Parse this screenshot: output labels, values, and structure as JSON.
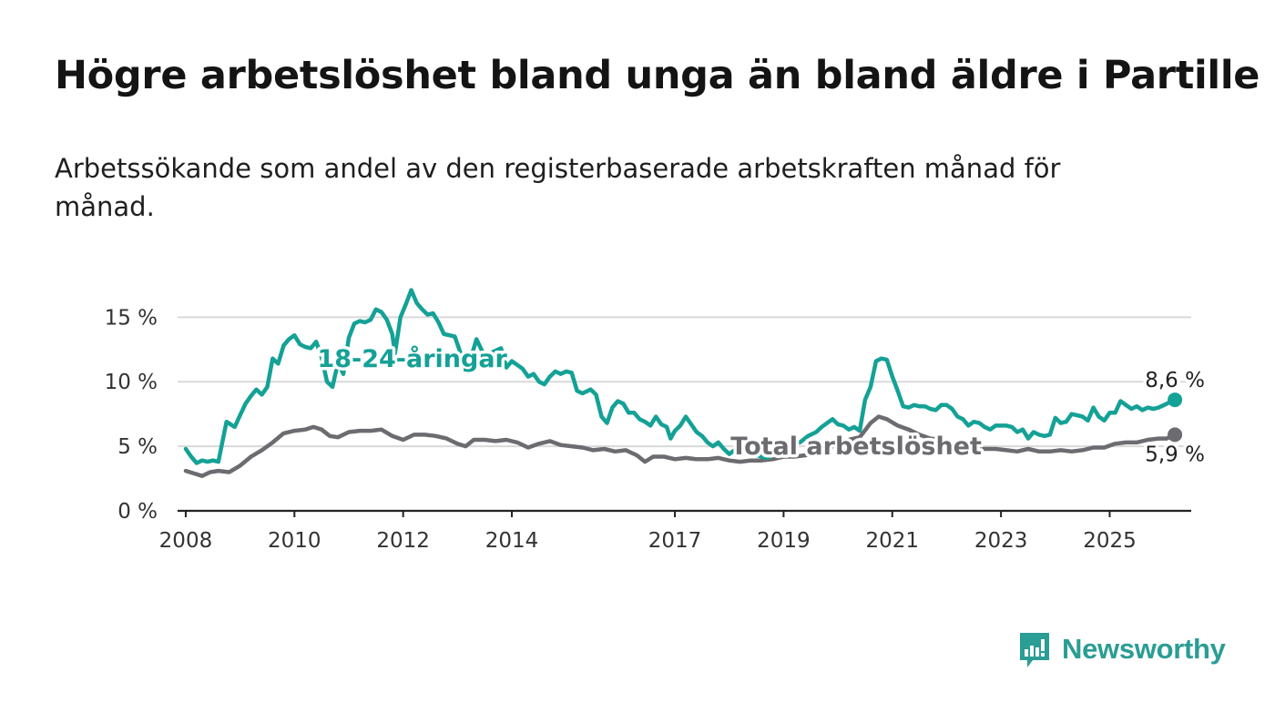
{
  "header": {
    "title": "Högre arbetslöshet bland unga än bland äldre i Partille",
    "subtitle": "Arbetssökande som andel av den registerbaserade arbetskraften månad för månad."
  },
  "brand": {
    "name": "Newsworthy",
    "color": "#2a9d94"
  },
  "colors": {
    "youth": "#14a196",
    "total": "#6c6b70",
    "grid": "#d9d9d9",
    "axis": "#222222"
  },
  "chart_data": {
    "type": "line",
    "title": "Högre arbetslöshet bland unga än bland äldre i Partille",
    "xlabel": "",
    "ylabel": "",
    "xlim": [
      2007.85,
      2026.5
    ],
    "ylim": [
      0,
      17
    ],
    "y_ticks": [
      0,
      5,
      10,
      15
    ],
    "y_tick_labels": [
      "0 %",
      "5 %",
      "10 %",
      "15 %"
    ],
    "x_ticks": [
      2008,
      2010,
      2012,
      2014,
      2017,
      2019,
      2021,
      2023,
      2025
    ],
    "x_tick_labels": [
      "2008",
      "2010",
      "2012",
      "2014",
      "2017",
      "2019",
      "2021",
      "2023",
      "2025"
    ],
    "grid": true,
    "series": [
      {
        "name": "18-24-åringar",
        "color": "#14a196",
        "label_at": 2012.0,
        "end_label": "8,6 %",
        "points": [
          [
            2008.0,
            4.8
          ],
          [
            2008.1,
            4.2
          ],
          [
            2008.2,
            3.7
          ],
          [
            2008.3,
            3.9
          ],
          [
            2008.4,
            3.8
          ],
          [
            2008.5,
            3.9
          ],
          [
            2008.6,
            3.8
          ],
          [
            2008.75,
            6.9
          ],
          [
            2008.9,
            6.5
          ],
          [
            2009.0,
            7.4
          ],
          [
            2009.1,
            8.3
          ],
          [
            2009.2,
            8.9
          ],
          [
            2009.3,
            9.4
          ],
          [
            2009.4,
            9.0
          ],
          [
            2009.5,
            9.6
          ],
          [
            2009.6,
            11.8
          ],
          [
            2009.7,
            11.4
          ],
          [
            2009.8,
            12.8
          ],
          [
            2009.9,
            13.3
          ],
          [
            2010.0,
            13.6
          ],
          [
            2010.1,
            12.9
          ],
          [
            2010.2,
            12.7
          ],
          [
            2010.3,
            12.6
          ],
          [
            2010.4,
            13.1
          ],
          [
            2010.5,
            11.9
          ],
          [
            2010.6,
            10.0
          ],
          [
            2010.7,
            9.6
          ],
          [
            2010.8,
            11.5
          ],
          [
            2010.9,
            10.6
          ],
          [
            2011.0,
            13.4
          ],
          [
            2011.1,
            14.5
          ],
          [
            2011.2,
            14.7
          ],
          [
            2011.3,
            14.6
          ],
          [
            2011.4,
            14.8
          ],
          [
            2011.5,
            15.6
          ],
          [
            2011.6,
            15.4
          ],
          [
            2011.7,
            14.8
          ],
          [
            2011.8,
            13.7
          ],
          [
            2011.85,
            12.2
          ],
          [
            2011.95,
            15.0
          ],
          [
            2012.05,
            16.0
          ],
          [
            2012.15,
            17.1
          ],
          [
            2012.25,
            16.1
          ],
          [
            2012.35,
            15.6
          ],
          [
            2012.45,
            15.2
          ],
          [
            2012.55,
            15.3
          ],
          [
            2012.65,
            14.6
          ],
          [
            2012.75,
            13.7
          ],
          [
            2012.85,
            13.6
          ],
          [
            2012.95,
            13.5
          ],
          [
            2013.05,
            12.3
          ],
          [
            2013.15,
            10.9
          ],
          [
            2013.25,
            11.9
          ],
          [
            2013.35,
            13.3
          ],
          [
            2013.45,
            12.4
          ],
          [
            2013.55,
            11.9
          ],
          [
            2013.65,
            12.3
          ],
          [
            2013.8,
            12.6
          ],
          [
            2013.9,
            11.1
          ],
          [
            2014.0,
            11.6
          ],
          [
            2014.2,
            11.0
          ],
          [
            2014.3,
            10.4
          ],
          [
            2014.4,
            10.6
          ],
          [
            2014.5,
            10.0
          ],
          [
            2014.6,
            9.8
          ],
          [
            2014.7,
            10.4
          ],
          [
            2014.8,
            10.8
          ],
          [
            2014.9,
            10.6
          ],
          [
            2015.0,
            10.8
          ],
          [
            2015.1,
            10.7
          ],
          [
            2015.2,
            9.3
          ],
          [
            2015.3,
            9.1
          ],
          [
            2015.45,
            9.4
          ],
          [
            2015.55,
            9.0
          ],
          [
            2015.65,
            7.3
          ],
          [
            2015.75,
            6.8
          ],
          [
            2015.85,
            8.0
          ],
          [
            2015.95,
            8.5
          ],
          [
            2016.05,
            8.3
          ],
          [
            2016.15,
            7.6
          ],
          [
            2016.25,
            7.6
          ],
          [
            2016.35,
            7.1
          ],
          [
            2016.45,
            6.9
          ],
          [
            2016.55,
            6.6
          ],
          [
            2016.65,
            7.3
          ],
          [
            2016.75,
            6.7
          ],
          [
            2016.85,
            6.5
          ],
          [
            2016.92,
            5.6
          ],
          [
            2017.0,
            6.2
          ],
          [
            2017.1,
            6.6
          ],
          [
            2017.2,
            7.3
          ],
          [
            2017.3,
            6.7
          ],
          [
            2017.4,
            6.1
          ],
          [
            2017.5,
            5.8
          ],
          [
            2017.6,
            5.3
          ],
          [
            2017.7,
            5.0
          ],
          [
            2017.8,
            5.3
          ],
          [
            2017.9,
            4.8
          ],
          [
            2018.0,
            4.4
          ],
          [
            2018.1,
            4.7
          ],
          [
            2018.2,
            4.8
          ],
          [
            2018.3,
            5.2
          ],
          [
            2018.4,
            4.8
          ],
          [
            2018.5,
            4.3
          ],
          [
            2018.6,
            4.2
          ],
          [
            2018.7,
            4.1
          ],
          [
            2018.8,
            4.3
          ],
          [
            2018.9,
            4.8
          ],
          [
            2019.0,
            5.0
          ],
          [
            2019.1,
            5.2
          ],
          [
            2019.3,
            5.3
          ],
          [
            2019.45,
            5.8
          ],
          [
            2019.6,
            6.1
          ],
          [
            2019.7,
            6.5
          ],
          [
            2019.8,
            6.8
          ],
          [
            2019.9,
            7.1
          ],
          [
            2020.0,
            6.7
          ],
          [
            2020.1,
            6.6
          ],
          [
            2020.2,
            6.3
          ],
          [
            2020.3,
            6.5
          ],
          [
            2020.4,
            6.2
          ],
          [
            2020.5,
            8.6
          ],
          [
            2020.6,
            9.6
          ],
          [
            2020.7,
            11.6
          ],
          [
            2020.8,
            11.8
          ],
          [
            2020.9,
            11.7
          ],
          [
            2021.0,
            10.4
          ],
          [
            2021.1,
            9.3
          ],
          [
            2021.2,
            8.1
          ],
          [
            2021.3,
            8.0
          ],
          [
            2021.4,
            8.2
          ],
          [
            2021.5,
            8.1
          ],
          [
            2021.6,
            8.1
          ],
          [
            2021.7,
            7.9
          ],
          [
            2021.8,
            7.8
          ],
          [
            2021.9,
            8.2
          ],
          [
            2022.0,
            8.2
          ],
          [
            2022.1,
            7.9
          ],
          [
            2022.2,
            7.3
          ],
          [
            2022.3,
            7.1
          ],
          [
            2022.4,
            6.6
          ],
          [
            2022.5,
            6.9
          ],
          [
            2022.6,
            6.8
          ],
          [
            2022.7,
            6.5
          ],
          [
            2022.8,
            6.3
          ],
          [
            2022.9,
            6.6
          ],
          [
            2023.0,
            6.6
          ],
          [
            2023.1,
            6.6
          ],
          [
            2023.2,
            6.5
          ],
          [
            2023.3,
            6.1
          ],
          [
            2023.4,
            6.3
          ],
          [
            2023.5,
            5.6
          ],
          [
            2023.6,
            6.1
          ],
          [
            2023.7,
            5.9
          ],
          [
            2023.8,
            5.8
          ],
          [
            2023.9,
            5.9
          ],
          [
            2024.0,
            7.2
          ],
          [
            2024.1,
            6.8
          ],
          [
            2024.2,
            6.9
          ],
          [
            2024.3,
            7.5
          ],
          [
            2024.4,
            7.4
          ],
          [
            2024.5,
            7.3
          ],
          [
            2024.6,
            7.0
          ],
          [
            2024.7,
            8.0
          ],
          [
            2024.8,
            7.3
          ],
          [
            2024.9,
            7.0
          ],
          [
            2025.0,
            7.6
          ],
          [
            2025.1,
            7.6
          ],
          [
            2025.2,
            8.5
          ],
          [
            2025.3,
            8.2
          ],
          [
            2025.4,
            7.9
          ],
          [
            2025.5,
            8.1
          ],
          [
            2025.6,
            7.8
          ],
          [
            2025.7,
            8.0
          ],
          [
            2025.8,
            7.9
          ],
          [
            2025.9,
            8.0
          ],
          [
            2026.0,
            8.2
          ],
          [
            2026.1,
            8.4
          ],
          [
            2026.2,
            8.6
          ]
        ]
      },
      {
        "name": "Total arbetslöshet",
        "color": "#6c6b70",
        "label_at": 2020.0,
        "end_label": "5,9 %",
        "points": [
          [
            2008.0,
            3.1
          ],
          [
            2008.15,
            2.9
          ],
          [
            2008.3,
            2.7
          ],
          [
            2008.45,
            3.0
          ],
          [
            2008.6,
            3.1
          ],
          [
            2008.8,
            3.0
          ],
          [
            2009.0,
            3.5
          ],
          [
            2009.2,
            4.2
          ],
          [
            2009.4,
            4.7
          ],
          [
            2009.6,
            5.3
          ],
          [
            2009.8,
            6.0
          ],
          [
            2010.0,
            6.2
          ],
          [
            2010.2,
            6.3
          ],
          [
            2010.35,
            6.5
          ],
          [
            2010.5,
            6.3
          ],
          [
            2010.65,
            5.8
          ],
          [
            2010.8,
            5.7
          ],
          [
            2011.0,
            6.1
          ],
          [
            2011.2,
            6.2
          ],
          [
            2011.4,
            6.2
          ],
          [
            2011.6,
            6.3
          ],
          [
            2011.8,
            5.8
          ],
          [
            2012.0,
            5.5
          ],
          [
            2012.2,
            5.9
          ],
          [
            2012.4,
            5.9
          ],
          [
            2012.6,
            5.8
          ],
          [
            2012.8,
            5.6
          ],
          [
            2013.0,
            5.2
          ],
          [
            2013.15,
            5.0
          ],
          [
            2013.3,
            5.5
          ],
          [
            2013.5,
            5.5
          ],
          [
            2013.7,
            5.4
          ],
          [
            2013.9,
            5.5
          ],
          [
            2014.1,
            5.3
          ],
          [
            2014.3,
            4.9
          ],
          [
            2014.5,
            5.2
          ],
          [
            2014.7,
            5.4
          ],
          [
            2014.9,
            5.1
          ],
          [
            2015.1,
            5.0
          ],
          [
            2015.3,
            4.9
          ],
          [
            2015.5,
            4.7
          ],
          [
            2015.7,
            4.8
          ],
          [
            2015.9,
            4.6
          ],
          [
            2016.1,
            4.7
          ],
          [
            2016.3,
            4.3
          ],
          [
            2016.45,
            3.8
          ],
          [
            2016.6,
            4.2
          ],
          [
            2016.8,
            4.2
          ],
          [
            2017.0,
            4.0
          ],
          [
            2017.2,
            4.1
          ],
          [
            2017.4,
            4.0
          ],
          [
            2017.6,
            4.0
          ],
          [
            2017.8,
            4.1
          ],
          [
            2018.0,
            3.9
          ],
          [
            2018.2,
            3.8
          ],
          [
            2018.4,
            3.9
          ],
          [
            2018.6,
            3.9
          ],
          [
            2018.8,
            4.0
          ],
          [
            2019.0,
            4.2
          ],
          [
            2019.2,
            4.2
          ],
          [
            2019.4,
            4.3
          ],
          [
            2019.6,
            4.5
          ],
          [
            2019.8,
            4.8
          ],
          [
            2020.0,
            5.2
          ],
          [
            2020.2,
            5.5
          ],
          [
            2020.4,
            5.7
          ],
          [
            2020.6,
            6.8
          ],
          [
            2020.75,
            7.3
          ],
          [
            2020.9,
            7.1
          ],
          [
            2021.1,
            6.6
          ],
          [
            2021.3,
            6.3
          ],
          [
            2021.5,
            5.9
          ],
          [
            2021.7,
            5.6
          ],
          [
            2021.9,
            5.5
          ],
          [
            2022.1,
            5.2
          ],
          [
            2022.3,
            5.0
          ],
          [
            2022.5,
            4.9
          ],
          [
            2022.7,
            4.8
          ],
          [
            2022.9,
            4.8
          ],
          [
            2023.1,
            4.7
          ],
          [
            2023.3,
            4.6
          ],
          [
            2023.5,
            4.8
          ],
          [
            2023.7,
            4.6
          ],
          [
            2023.9,
            4.6
          ],
          [
            2024.1,
            4.7
          ],
          [
            2024.3,
            4.6
          ],
          [
            2024.5,
            4.7
          ],
          [
            2024.7,
            4.9
          ],
          [
            2024.9,
            4.9
          ],
          [
            2025.1,
            5.2
          ],
          [
            2025.3,
            5.3
          ],
          [
            2025.5,
            5.3
          ],
          [
            2025.7,
            5.5
          ],
          [
            2025.9,
            5.6
          ],
          [
            2026.05,
            5.6
          ],
          [
            2026.2,
            5.9
          ]
        ]
      }
    ]
  }
}
